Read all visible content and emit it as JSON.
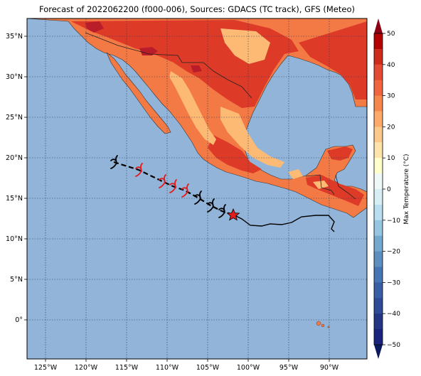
{
  "title": "Forecast of 2022062200 (f000-006), Sources: GDACS (TC track), GFS (Meteo)",
  "map": {
    "lon_labels": [
      "125°W",
      "120°W",
      "115°W",
      "110°W",
      "105°W",
      "100°W",
      "95°W",
      "90°W"
    ],
    "lat_labels": [
      "35°N",
      "30°N",
      "25°N",
      "20°N",
      "15°N",
      "10°N",
      "5°N",
      "0°"
    ]
  },
  "colorbar": {
    "label": "Max Temperature (°C)",
    "ticks": [
      "50",
      "40",
      "30",
      "20",
      "10",
      "0",
      "−10",
      "−20",
      "−30",
      "−40",
      "−50"
    ],
    "colors": [
      "#1a237e",
      "#3949ab",
      "#4f78b6",
      "#74a9cf",
      "#a6cde3",
      "#e3f2fa",
      "#ffffcc",
      "#fed98e",
      "#fc8d59",
      "#e34a33",
      "#b30000"
    ]
  },
  "colors": {
    "ocean": "#92b4d8",
    "land_warm": "#f47a45",
    "land_hot": "#dd3b28",
    "land_mild": "#fdba74",
    "land_very_hot": "#b91d2a",
    "track_past": "#000000",
    "storm_current": "#e41a1c"
  }
}
